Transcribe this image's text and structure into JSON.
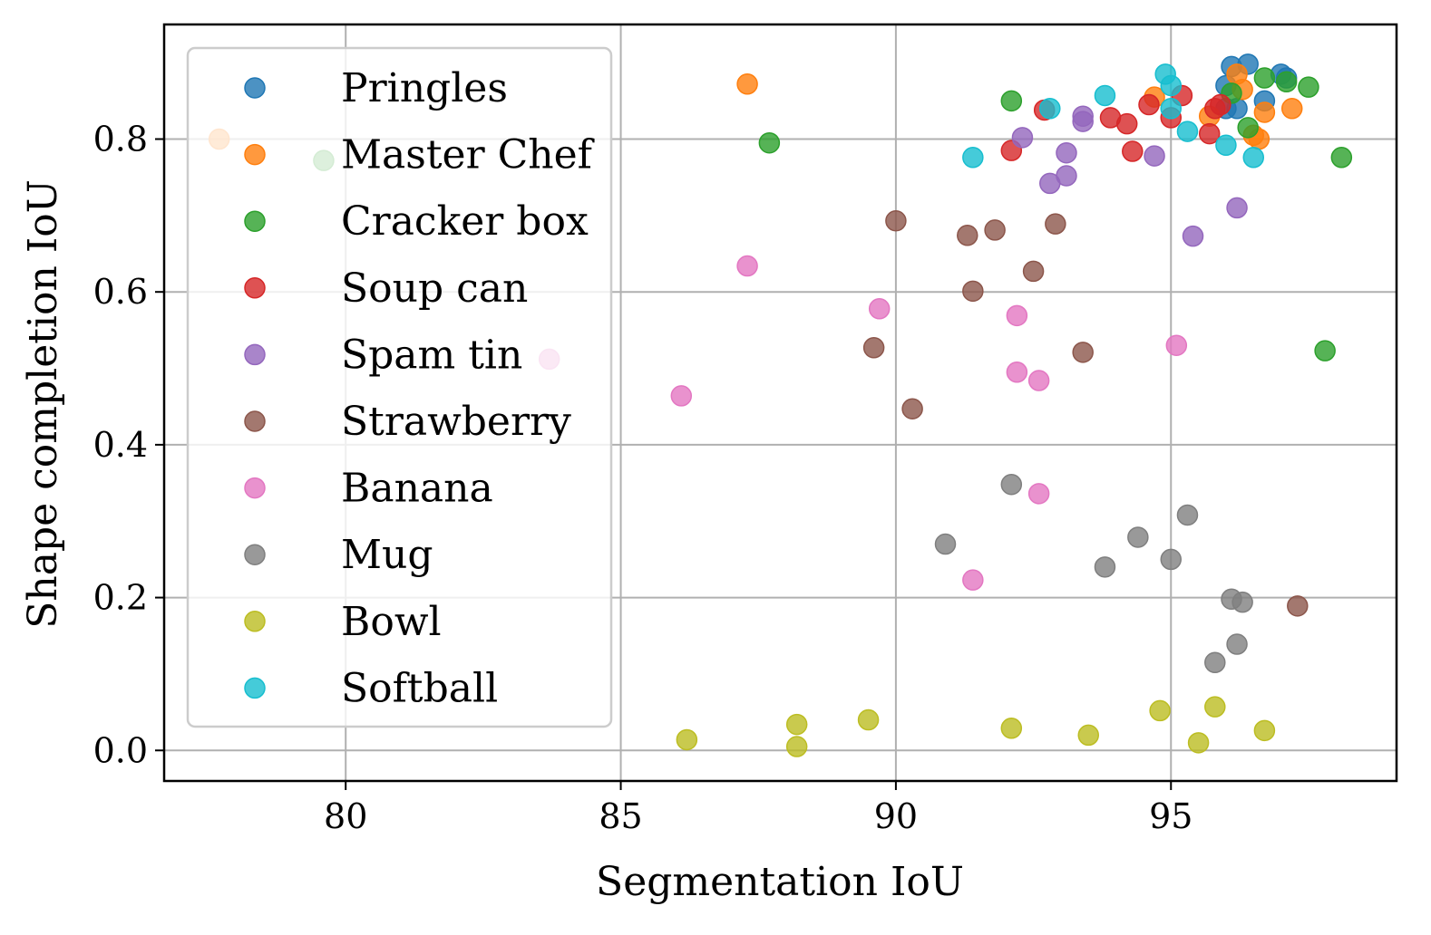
{
  "chart_data": {
    "type": "scatter",
    "xlabel": "Segmentation IoU",
    "ylabel": "Shape completion IoU",
    "xlim": [
      76.7,
      99.1
    ],
    "ylim": [
      -0.04,
      0.95
    ],
    "xticks": [
      80,
      85,
      90,
      95
    ],
    "yticks": [
      0.0,
      0.2,
      0.4,
      0.6,
      0.8
    ],
    "xtick_labels": [
      "80",
      "85",
      "90",
      "95"
    ],
    "ytick_labels": [
      "0.0",
      "0.2",
      "0.4",
      "0.6",
      "0.8"
    ],
    "grid": true,
    "legend_position": "top-left",
    "series": [
      {
        "name": "Pringles",
        "color": "#1f77b4",
        "points": [
          [
            96.1,
            0.895
          ],
          [
            96.4,
            0.898
          ],
          [
            96.0,
            0.87
          ],
          [
            96.2,
            0.84
          ],
          [
            96.7,
            0.85
          ],
          [
            97.0,
            0.885
          ],
          [
            97.1,
            0.88
          ],
          [
            96.0,
            0.84
          ]
        ]
      },
      {
        "name": "Master Chef",
        "color": "#ff7f0e",
        "points": [
          [
            87.3,
            0.872
          ],
          [
            77.7,
            0.8
          ],
          [
            94.7,
            0.855
          ],
          [
            96.2,
            0.885
          ],
          [
            96.3,
            0.865
          ],
          [
            95.7,
            0.83
          ],
          [
            96.7,
            0.835
          ],
          [
            96.5,
            0.805
          ],
          [
            96.6,
            0.8
          ],
          [
            97.2,
            0.84
          ]
        ]
      },
      {
        "name": "Cracker box",
        "color": "#2ca02c",
        "points": [
          [
            87.7,
            0.795
          ],
          [
            79.6,
            0.772
          ],
          [
            92.1,
            0.85
          ],
          [
            96.1,
            0.86
          ],
          [
            96.7,
            0.88
          ],
          [
            97.1,
            0.875
          ],
          [
            97.5,
            0.868
          ],
          [
            96.4,
            0.815
          ],
          [
            98.1,
            0.776
          ],
          [
            97.8,
            0.523
          ]
        ]
      },
      {
        "name": "Soup can",
        "color": "#d62728",
        "points": [
          [
            92.1,
            0.785
          ],
          [
            92.7,
            0.838
          ],
          [
            93.9,
            0.828
          ],
          [
            94.2,
            0.82
          ],
          [
            94.3,
            0.784
          ],
          [
            94.6,
            0.845
          ],
          [
            95.0,
            0.828
          ],
          [
            95.2,
            0.857
          ],
          [
            95.7,
            0.807
          ],
          [
            95.8,
            0.84
          ],
          [
            95.9,
            0.845
          ]
        ]
      },
      {
        "name": "Spam tin",
        "color": "#9467bd",
        "points": [
          [
            92.3,
            0.802
          ],
          [
            92.8,
            0.742
          ],
          [
            93.1,
            0.752
          ],
          [
            93.1,
            0.782
          ],
          [
            93.4,
            0.823
          ],
          [
            93.4,
            0.83
          ],
          [
            94.7,
            0.778
          ],
          [
            95.4,
            0.673
          ],
          [
            96.2,
            0.71
          ]
        ]
      },
      {
        "name": "Strawberry",
        "color": "#8c564b",
        "points": [
          [
            90.0,
            0.693
          ],
          [
            91.3,
            0.674
          ],
          [
            91.8,
            0.681
          ],
          [
            92.9,
            0.689
          ],
          [
            92.5,
            0.627
          ],
          [
            91.4,
            0.601
          ],
          [
            89.6,
            0.527
          ],
          [
            93.4,
            0.521
          ],
          [
            90.3,
            0.447
          ],
          [
            97.3,
            0.189
          ]
        ]
      },
      {
        "name": "Banana",
        "color": "#e377c2",
        "points": [
          [
            87.3,
            0.634
          ],
          [
            89.7,
            0.578
          ],
          [
            92.2,
            0.569
          ],
          [
            83.7,
            0.512
          ],
          [
            95.1,
            0.53
          ],
          [
            92.2,
            0.495
          ],
          [
            92.6,
            0.484
          ],
          [
            86.1,
            0.464
          ],
          [
            92.6,
            0.336
          ],
          [
            91.4,
            0.223
          ]
        ]
      },
      {
        "name": "Mug",
        "color": "#7f7f7f",
        "points": [
          [
            92.1,
            0.348
          ],
          [
            95.3,
            0.308
          ],
          [
            90.9,
            0.27
          ],
          [
            94.4,
            0.279
          ],
          [
            95.0,
            0.25
          ],
          [
            93.8,
            0.24
          ],
          [
            96.1,
            0.198
          ],
          [
            96.3,
            0.194
          ],
          [
            96.2,
            0.139
          ],
          [
            95.8,
            0.115
          ]
        ]
      },
      {
        "name": "Bowl",
        "color": "#bcbd22",
        "points": [
          [
            86.2,
            0.014
          ],
          [
            88.2,
            0.034
          ],
          [
            88.2,
            0.005
          ],
          [
            89.5,
            0.04
          ],
          [
            92.1,
            0.029
          ],
          [
            93.5,
            0.02
          ],
          [
            94.8,
            0.052
          ],
          [
            95.8,
            0.057
          ],
          [
            95.5,
            0.01
          ],
          [
            96.7,
            0.026
          ]
        ]
      },
      {
        "name": "Softball",
        "color": "#17becf",
        "points": [
          [
            91.4,
            0.776
          ],
          [
            92.8,
            0.84
          ],
          [
            93.8,
            0.857
          ],
          [
            94.9,
            0.885
          ],
          [
            95.0,
            0.87
          ],
          [
            95.0,
            0.84
          ],
          [
            95.3,
            0.81
          ],
          [
            96.0,
            0.792
          ],
          [
            96.5,
            0.776
          ]
        ]
      }
    ]
  }
}
